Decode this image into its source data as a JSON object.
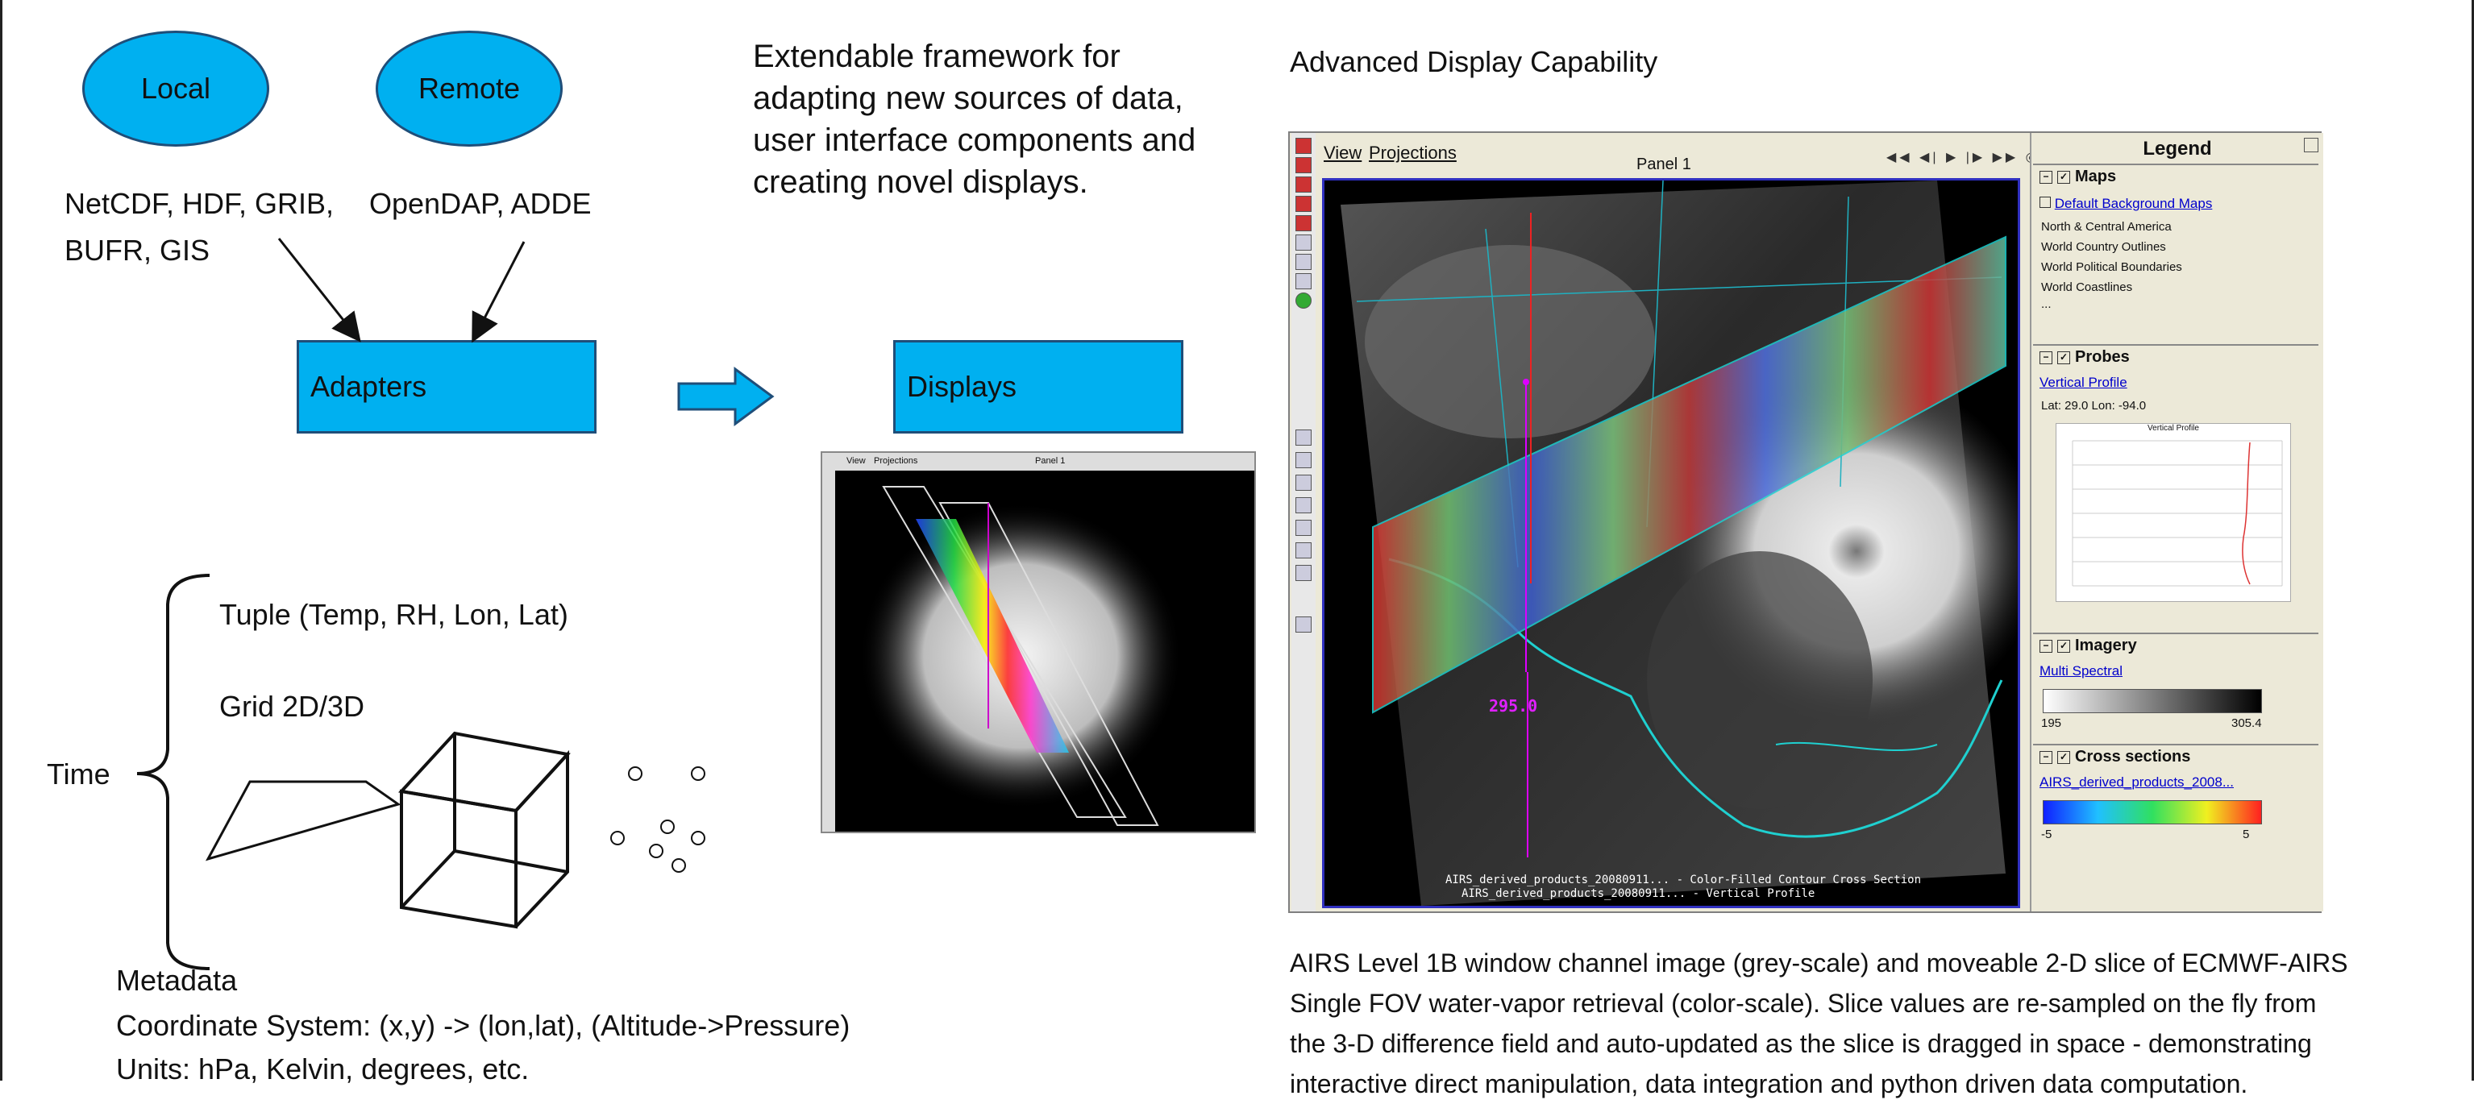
{
  "framework": {
    "local_label": "Local",
    "remote_label": "Remote",
    "local_formats_line1": "NetCDF, HDF, GRIB,",
    "local_formats_line2": "BUFR, GIS",
    "remote_formats": "OpenDAP, ADDE",
    "adapters_label": "Adapters",
    "displays_label": "Displays",
    "description_lines": [
      "Extendable framework for",
      "adapting new sources of data,",
      "user interface components and",
      "creating novel displays."
    ],
    "thumbnail_menu": [
      "View",
      "Projections"
    ],
    "thumbnail_panel": "Panel 1"
  },
  "data_model": {
    "time_label": "Time",
    "tuple_label": "Tuple (Temp, RH, Lon, Lat)",
    "grid_label": "Grid 2D/3D",
    "metadata_label": "Metadata",
    "coordinate_system": "Coordinate System: (x,y) -> (lon,lat),  (Altitude->Pressure)",
    "units": "Units:  hPa, Kelvin, degrees, etc."
  },
  "advanced": {
    "heading": "Advanced Display Capability",
    "menu": [
      "View",
      "Projections"
    ],
    "panel_title": "Panel 1",
    "probe_value": "295.0",
    "map_caption_line1": "AIRS_derived_products_20080911... - Color-Filled Contour Cross Section",
    "map_caption_line2": "AIRS_derived_products_20080911... - Vertical Profile",
    "legend": {
      "title": "Legend",
      "sections": {
        "maps": "Maps",
        "probes": "Probes",
        "imagery": "Imagery",
        "cross_sections": "Cross sections"
      },
      "maps_link": "Default Background Maps",
      "maps_items": [
        "North & Central America",
        "World Country Outlines",
        "World Political Boundaries",
        "World Coastlines",
        "..."
      ],
      "probe_link": "Vertical Profile",
      "probe_latlon": "Lat: 29.0  Lon: -94.0",
      "probe_chart_title": "Vertical Profile",
      "imagery_link": "Multi Spectral",
      "imagery_min": "195",
      "imagery_max": "305.4",
      "cross_link": "AIRS_derived_products_2008...",
      "cross_min": "-5",
      "cross_max": "5"
    },
    "caption_lines": [
      "AIRS Level 1B window channel image (grey-scale) and moveable 2-D slice of ECMWF-AIRS",
      "Single FOV water-vapor retrieval (color-scale).  Slice values are re-sampled on the fly from",
      "the 3-D difference  field and auto-updated as the slice is dragged in space - demonstrating",
      "interactive direct manipulation, data integration and python driven data computation."
    ]
  },
  "colors": {
    "shape_fill": "#00b0f0",
    "shape_border": "#1f4e79"
  }
}
